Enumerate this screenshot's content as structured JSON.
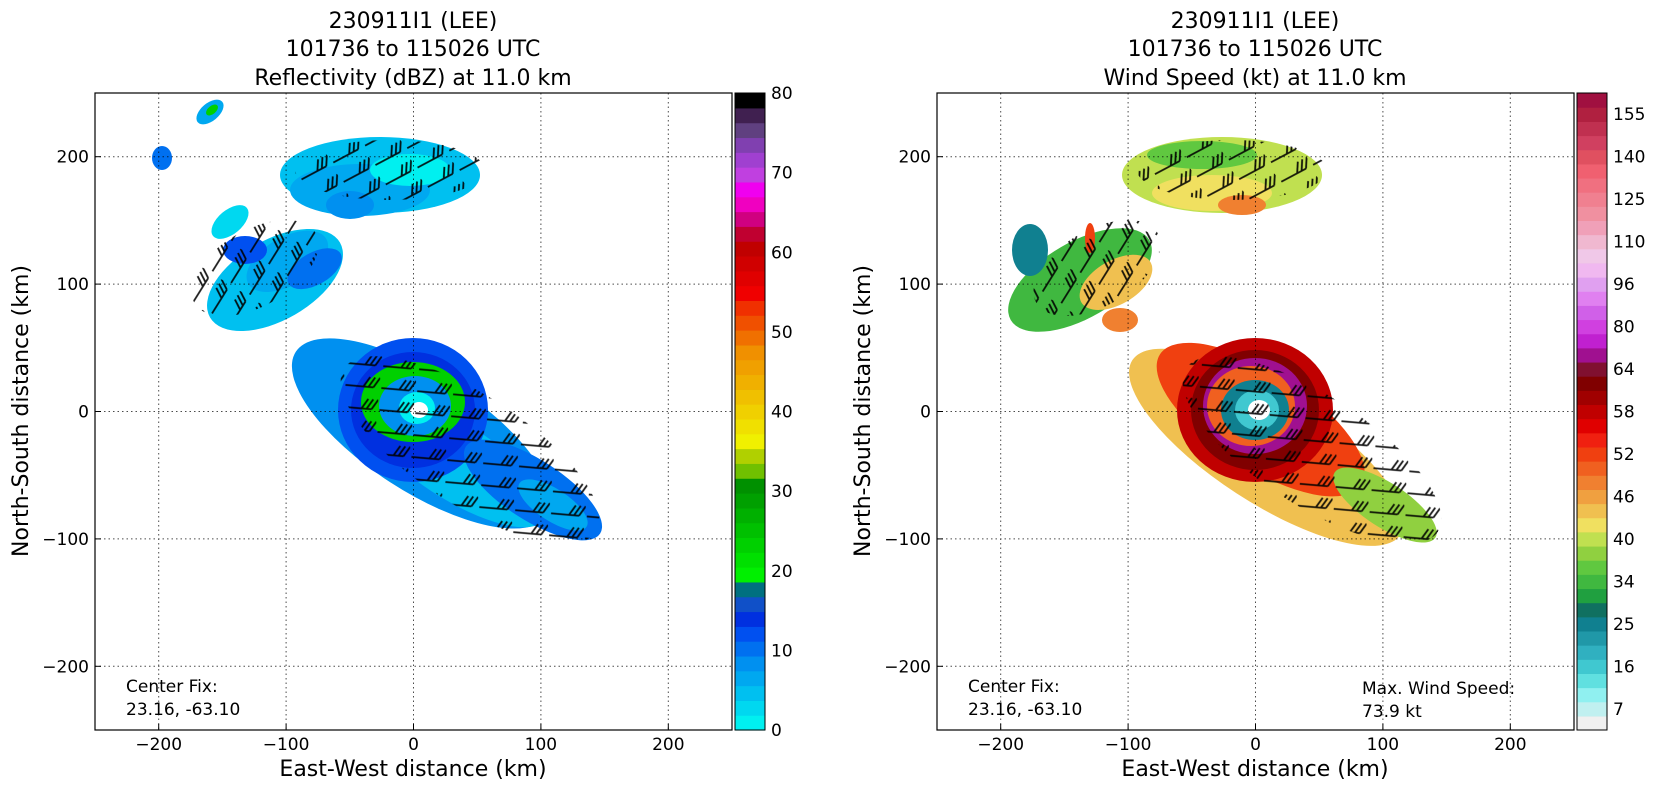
{
  "chart_data": [
    {
      "type": "heatmap",
      "title_lines": [
        "230911I1 (LEE)",
        "101736 to 115026 UTC",
        "Reflectivity (dBZ) at 11.0 km"
      ],
      "xlabel": "East-West distance (km)",
      "ylabel": "North-South distance (km)",
      "xlim": [
        -250,
        250
      ],
      "ylim": [
        -250,
        250
      ],
      "xticks": [
        -200,
        -100,
        0,
        100,
        200
      ],
      "yticks": [
        -200,
        -100,
        0,
        100,
        200
      ],
      "grid": true,
      "colorbar": {
        "min": 0,
        "max": 80,
        "ticks": [
          0,
          10,
          20,
          30,
          40,
          50,
          60,
          70,
          80
        ],
        "colors": [
          "#00f0f0",
          "#00d8f0",
          "#00c0f0",
          "#00a8f0",
          "#0090f0",
          "#0070f0",
          "#0050f0",
          "#0030e0",
          "#1050c8",
          "#007080",
          "#00f000",
          "#00e000",
          "#00d000",
          "#00c000",
          "#00b000",
          "#00a000",
          "#009000",
          "#70c000",
          "#b0d000",
          "#f0f000",
          "#f0e000",
          "#f0d000",
          "#f0c000",
          "#f0b000",
          "#f0a000",
          "#f09000",
          "#f07000",
          "#f05000",
          "#f03000",
          "#f00000",
          "#e00000",
          "#d00000",
          "#c00000",
          "#c00030",
          "#d00080",
          "#f000c0",
          "#f000f0",
          "#c040e0",
          "#a040d0",
          "#8040b0",
          "#604080",
          "#402050",
          "#000000"
        ]
      },
      "annotations": [
        {
          "text": "Center Fix:",
          "position": "bottom-left"
        },
        {
          "text": "23.16, -63.10",
          "position": "bottom-left"
        }
      ]
    },
    {
      "type": "heatmap",
      "title_lines": [
        "230911I1 (LEE)",
        "101736 to 115026 UTC",
        "Wind Speed (kt) at 11.0 km"
      ],
      "xlabel": "East-West distance (km)",
      "ylabel": "North-South distance (km)",
      "xlim": [
        -250,
        250
      ],
      "ylim": [
        -250,
        250
      ],
      "xticks": [
        -200,
        -100,
        0,
        100,
        200
      ],
      "yticks": [
        -200,
        -100,
        0,
        100,
        200
      ],
      "grid": true,
      "colorbar": {
        "min": 7,
        "max": 160,
        "tick_labels": [
          "7",
          "16",
          "25",
          "34",
          "40",
          "46",
          "52",
          "58",
          "64",
          "80",
          "96",
          "110",
          "125",
          "140",
          "155"
        ],
        "colors": [
          "#f0f0f0",
          "#c0f0f0",
          "#90f0f0",
          "#60e0e0",
          "#40c8d0",
          "#30b0c0",
          "#2098a8",
          "#108090",
          "#107060",
          "#20a040",
          "#40b840",
          "#60c840",
          "#90d040",
          "#c0e050",
          "#f0e060",
          "#f0c050",
          "#f0a040",
          "#f08030",
          "#f06020",
          "#f04010",
          "#f02010",
          "#e00000",
          "#c00000",
          "#a00000",
          "#800000",
          "#801030",
          "#a01090",
          "#c020d0",
          "#d040e0",
          "#d060e8",
          "#e080f0",
          "#e0a0f0",
          "#f0b8f0",
          "#f0c8e8",
          "#f0b8d0",
          "#f0a0b8",
          "#f090a0",
          "#f08090",
          "#f07080",
          "#f06070",
          "#e05060",
          "#d04060",
          "#c03050",
          "#b02040",
          "#a01040"
        ]
      },
      "annotations": [
        {
          "text": "Center Fix:",
          "position": "bottom-left"
        },
        {
          "text": "23.16, -63.10",
          "position": "bottom-left"
        },
        {
          "text": "Max. Wind Speed:",
          "position": "bottom-right"
        },
        {
          "text": "73.9 kt",
          "position": "bottom-right"
        }
      ]
    }
  ]
}
